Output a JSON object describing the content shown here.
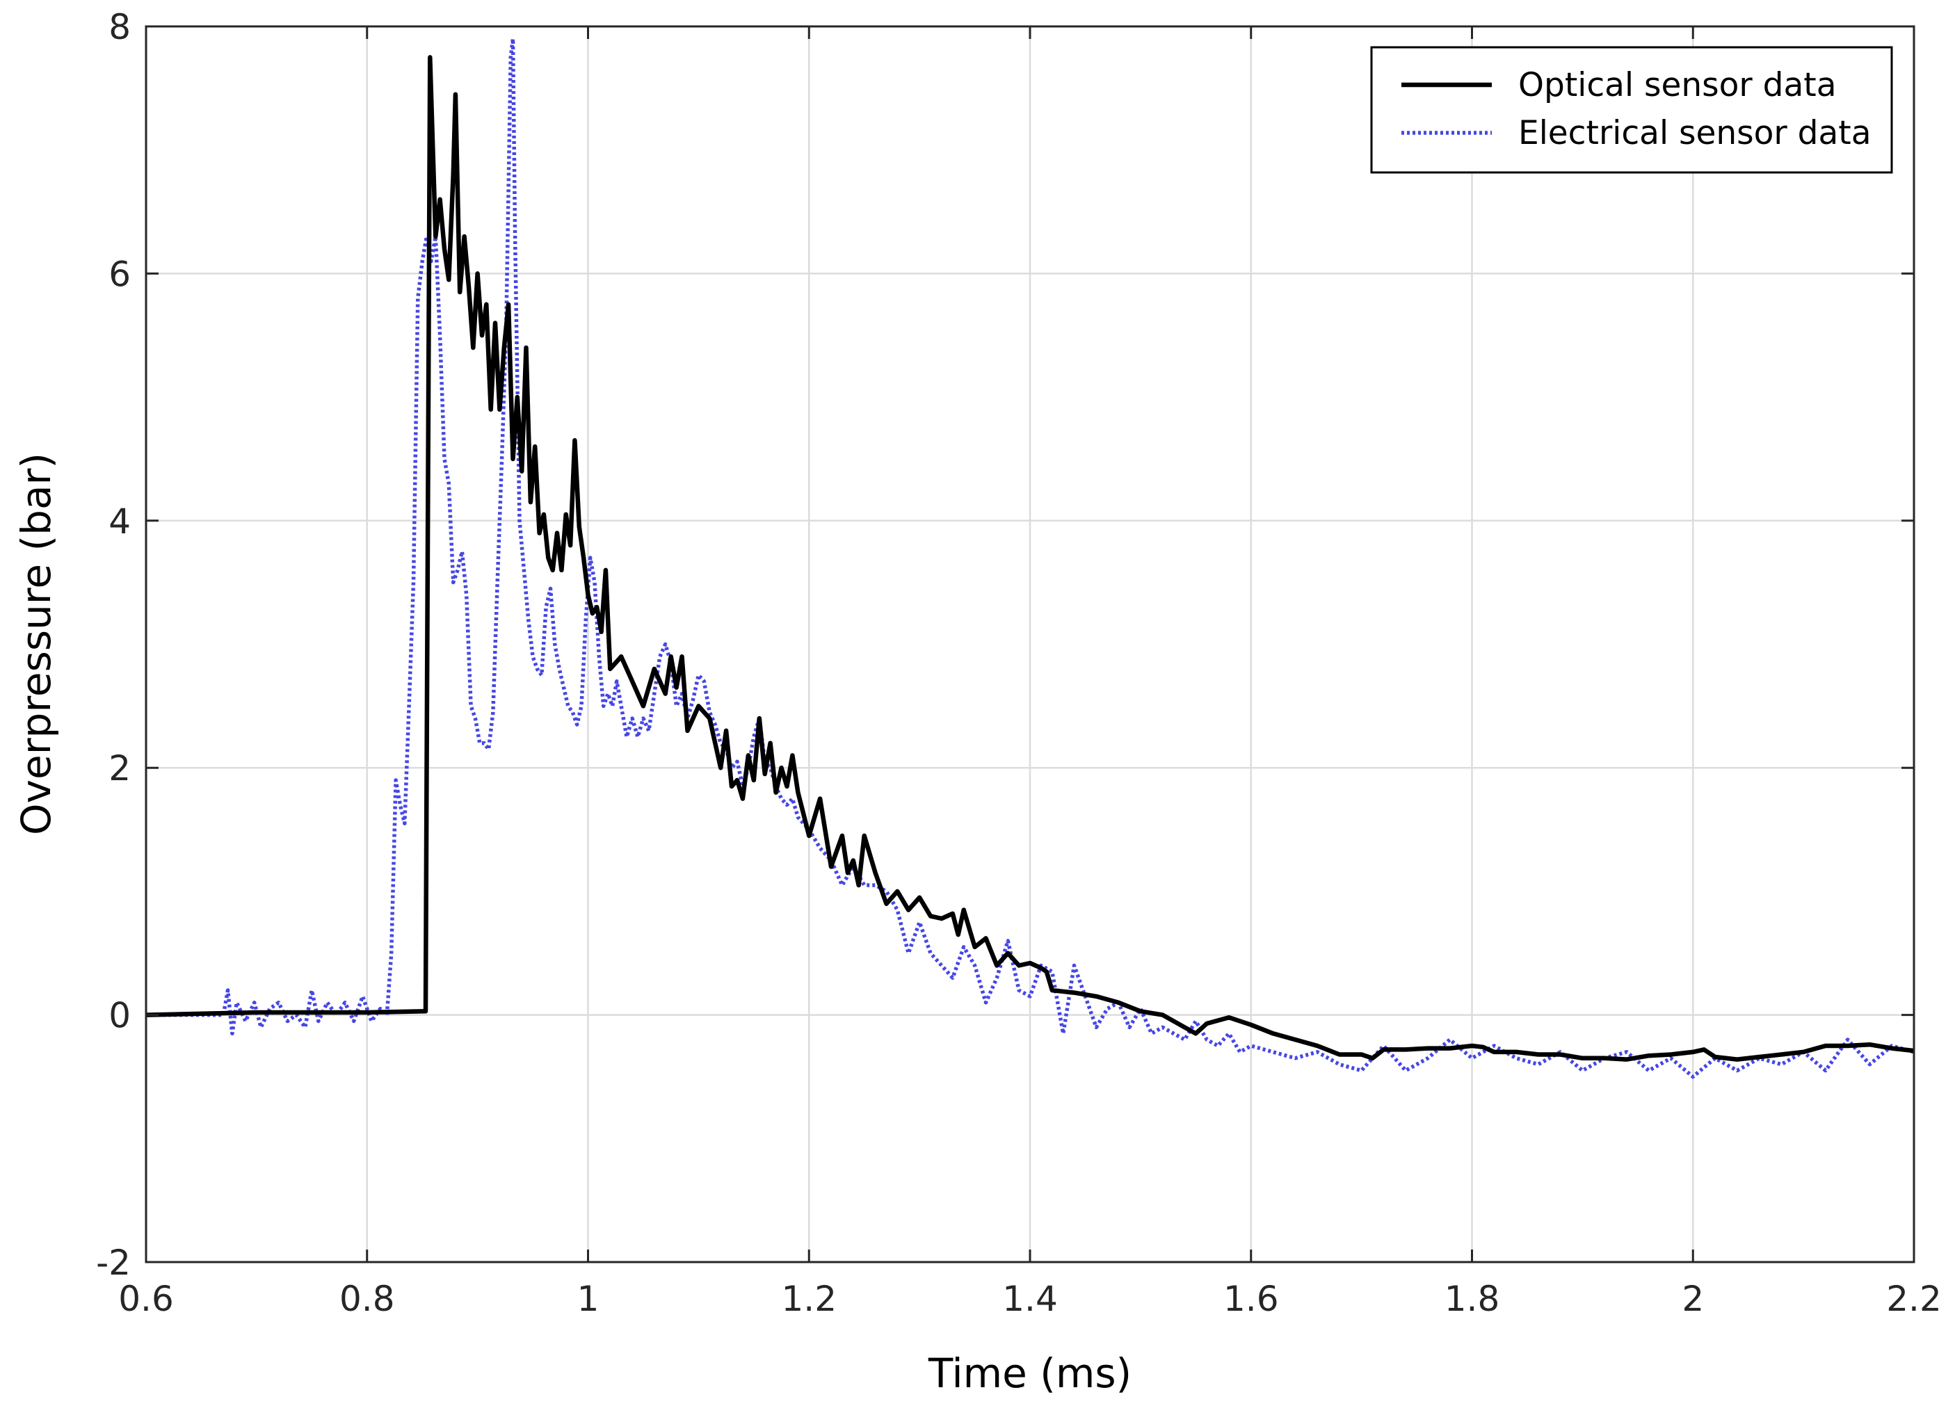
{
  "chart_data": {
    "type": "line",
    "xlabel": "Time (ms)",
    "ylabel": "Overpressure (bar)",
    "xlim": [
      0.6,
      2.2
    ],
    "ylim": [
      -2,
      8
    ],
    "xticks": [
      "0.6",
      "0.8",
      "1",
      "1.2",
      "1.4",
      "1.6",
      "1.8",
      "2",
      "2.2"
    ],
    "yticks": [
      "-2",
      "0",
      "2",
      "4",
      "6",
      "8"
    ],
    "grid": true,
    "legend_position": "top-right",
    "series": [
      {
        "name": "Optical sensor data",
        "color": "#000000",
        "style": "solid",
        "x": [
          0.6,
          0.7,
          0.8,
          0.853,
          0.854,
          0.857,
          0.862,
          0.866,
          0.87,
          0.874,
          0.878,
          0.88,
          0.884,
          0.888,
          0.892,
          0.896,
          0.9,
          0.904,
          0.908,
          0.912,
          0.916,
          0.92,
          0.924,
          0.928,
          0.932,
          0.936,
          0.94,
          0.944,
          0.948,
          0.952,
          0.956,
          0.96,
          0.964,
          0.968,
          0.972,
          0.976,
          0.98,
          0.984,
          0.988,
          0.992,
          0.996,
          1.0,
          1.004,
          1.008,
          1.012,
          1.016,
          1.02,
          1.03,
          1.04,
          1.05,
          1.06,
          1.07,
          1.075,
          1.08,
          1.085,
          1.09,
          1.1,
          1.11,
          1.12,
          1.125,
          1.13,
          1.135,
          1.14,
          1.145,
          1.15,
          1.155,
          1.16,
          1.165,
          1.17,
          1.175,
          1.18,
          1.185,
          1.19,
          1.2,
          1.21,
          1.22,
          1.23,
          1.235,
          1.24,
          1.245,
          1.25,
          1.26,
          1.27,
          1.28,
          1.29,
          1.3,
          1.31,
          1.32,
          1.33,
          1.335,
          1.34,
          1.35,
          1.36,
          1.37,
          1.38,
          1.39,
          1.4,
          1.41,
          1.415,
          1.42,
          1.44,
          1.46,
          1.48,
          1.5,
          1.52,
          1.54,
          1.55,
          1.56,
          1.58,
          1.6,
          1.62,
          1.64,
          1.66,
          1.68,
          1.7,
          1.71,
          1.72,
          1.74,
          1.76,
          1.78,
          1.8,
          1.81,
          1.82,
          1.84,
          1.86,
          1.88,
          1.9,
          1.92,
          1.94,
          1.96,
          1.98,
          2.0,
          2.01,
          2.02,
          2.04,
          2.06,
          2.08,
          2.1,
          2.12,
          2.14,
          2.16,
          2.18,
          2.2
        ],
        "y": [
          0.0,
          0.02,
          0.02,
          0.03,
          2.0,
          7.75,
          6.3,
          6.6,
          6.2,
          5.95,
          6.8,
          7.45,
          5.85,
          6.3,
          5.9,
          5.4,
          6.0,
          5.5,
          5.75,
          4.9,
          5.6,
          4.9,
          5.4,
          5.75,
          4.5,
          5.0,
          4.4,
          5.4,
          4.15,
          4.6,
          3.9,
          4.05,
          3.7,
          3.6,
          3.9,
          3.6,
          4.05,
          3.8,
          4.65,
          3.95,
          3.7,
          3.4,
          3.25,
          3.3,
          3.1,
          3.6,
          2.8,
          2.9,
          2.7,
          2.5,
          2.8,
          2.6,
          2.9,
          2.65,
          2.9,
          2.3,
          2.5,
          2.4,
          2.0,
          2.3,
          1.85,
          1.9,
          1.75,
          2.1,
          1.9,
          2.4,
          1.95,
          2.2,
          1.8,
          2.0,
          1.85,
          2.1,
          1.8,
          1.45,
          1.75,
          1.2,
          1.45,
          1.15,
          1.25,
          1.05,
          1.45,
          1.15,
          0.9,
          1.0,
          0.85,
          0.95,
          0.8,
          0.78,
          0.82,
          0.65,
          0.85,
          0.55,
          0.62,
          0.4,
          0.5,
          0.4,
          0.42,
          0.38,
          0.35,
          0.2,
          0.18,
          0.15,
          0.1,
          0.03,
          0.0,
          -0.1,
          -0.15,
          -0.07,
          -0.02,
          -0.08,
          -0.15,
          -0.2,
          -0.25,
          -0.32,
          -0.32,
          -0.35,
          -0.28,
          -0.28,
          -0.27,
          -0.27,
          -0.25,
          -0.26,
          -0.3,
          -0.3,
          -0.32,
          -0.32,
          -0.35,
          -0.35,
          -0.36,
          -0.33,
          -0.32,
          -0.3,
          -0.28,
          -0.34,
          -0.36,
          -0.34,
          -0.32,
          -0.3,
          -0.25,
          -0.25,
          -0.24,
          -0.27,
          -0.29
        ]
      },
      {
        "name": "Electrical sensor data",
        "color": "#4646e6",
        "style": "dotted",
        "x": [
          0.6,
          0.67,
          0.674,
          0.678,
          0.682,
          0.69,
          0.698,
          0.704,
          0.712,
          0.72,
          0.728,
          0.736,
          0.744,
          0.75,
          0.756,
          0.764,
          0.772,
          0.78,
          0.788,
          0.796,
          0.804,
          0.812,
          0.818,
          0.822,
          0.826,
          0.83,
          0.834,
          0.838,
          0.842,
          0.846,
          0.85,
          0.854,
          0.858,
          0.862,
          0.866,
          0.87,
          0.874,
          0.878,
          0.882,
          0.886,
          0.89,
          0.894,
          0.898,
          0.902,
          0.906,
          0.91,
          0.914,
          0.918,
          0.922,
          0.926,
          0.93,
          0.932,
          0.934,
          0.938,
          0.942,
          0.946,
          0.95,
          0.954,
          0.958,
          0.962,
          0.966,
          0.97,
          0.974,
          0.978,
          0.982,
          0.986,
          0.99,
          0.994,
          0.998,
          1.002,
          1.006,
          1.01,
          1.014,
          1.018,
          1.022,
          1.026,
          1.03,
          1.035,
          1.04,
          1.045,
          1.05,
          1.055,
          1.06,
          1.065,
          1.07,
          1.075,
          1.08,
          1.085,
          1.09,
          1.095,
          1.1,
          1.105,
          1.11,
          1.115,
          1.12,
          1.125,
          1.13,
          1.135,
          1.14,
          1.145,
          1.15,
          1.155,
          1.16,
          1.165,
          1.17,
          1.175,
          1.18,
          1.185,
          1.19,
          1.195,
          1.2,
          1.21,
          1.22,
          1.23,
          1.24,
          1.25,
          1.26,
          1.27,
          1.28,
          1.29,
          1.3,
          1.31,
          1.32,
          1.33,
          1.34,
          1.35,
          1.36,
          1.37,
          1.38,
          1.39,
          1.4,
          1.41,
          1.42,
          1.43,
          1.44,
          1.45,
          1.46,
          1.47,
          1.48,
          1.49,
          1.5,
          1.51,
          1.52,
          1.53,
          1.54,
          1.55,
          1.56,
          1.57,
          1.58,
          1.59,
          1.6,
          1.62,
          1.64,
          1.66,
          1.68,
          1.7,
          1.71,
          1.72,
          1.74,
          1.76,
          1.78,
          1.8,
          1.82,
          1.84,
          1.86,
          1.88,
          1.9,
          1.92,
          1.94,
          1.96,
          1.98,
          2.0,
          2.02,
          2.04,
          2.06,
          2.08,
          2.1,
          2.12,
          2.14,
          2.16,
          2.18,
          2.2
        ],
        "y": [
          0.0,
          0.0,
          0.2,
          -0.15,
          0.1,
          -0.05,
          0.1,
          -0.1,
          0.05,
          0.1,
          -0.05,
          0.0,
          -0.1,
          0.2,
          -0.05,
          0.1,
          0.0,
          0.1,
          -0.05,
          0.15,
          -0.05,
          0.05,
          0.0,
          0.5,
          1.9,
          1.7,
          1.55,
          2.5,
          3.5,
          5.8,
          6.1,
          6.3,
          6.1,
          6.3,
          5.5,
          4.5,
          4.3,
          3.5,
          3.6,
          3.75,
          3.4,
          2.5,
          2.4,
          2.2,
          2.2,
          2.15,
          2.45,
          3.5,
          4.5,
          5.6,
          7.75,
          7.9,
          6.3,
          4.0,
          3.6,
          3.2,
          2.9,
          2.8,
          2.75,
          3.3,
          3.45,
          3.0,
          2.8,
          2.65,
          2.5,
          2.45,
          2.35,
          2.5,
          3.2,
          3.7,
          3.5,
          2.9,
          2.5,
          2.6,
          2.5,
          2.7,
          2.5,
          2.25,
          2.4,
          2.25,
          2.4,
          2.3,
          2.6,
          2.9,
          3.0,
          2.85,
          2.5,
          2.6,
          2.4,
          2.55,
          2.75,
          2.7,
          2.45,
          2.35,
          2.2,
          2.15,
          2.0,
          2.05,
          1.85,
          2.0,
          2.25,
          2.4,
          2.05,
          2.0,
          1.85,
          1.75,
          1.7,
          1.75,
          1.6,
          1.55,
          1.5,
          1.35,
          1.25,
          1.05,
          1.2,
          1.05,
          1.05,
          1.0,
          0.85,
          0.5,
          0.75,
          0.5,
          0.4,
          0.3,
          0.55,
          0.4,
          0.1,
          0.3,
          0.6,
          0.2,
          0.15,
          0.4,
          0.35,
          -0.15,
          0.4,
          0.15,
          -0.1,
          0.05,
          0.1,
          -0.1,
          0.05,
          -0.15,
          -0.1,
          -0.15,
          -0.2,
          -0.05,
          -0.2,
          -0.25,
          -0.15,
          -0.3,
          -0.25,
          -0.3,
          -0.35,
          -0.3,
          -0.4,
          -0.45,
          -0.35,
          -0.25,
          -0.45,
          -0.35,
          -0.2,
          -0.35,
          -0.25,
          -0.35,
          -0.4,
          -0.3,
          -0.45,
          -0.35,
          -0.3,
          -0.45,
          -0.35,
          -0.5,
          -0.35,
          -0.45,
          -0.35,
          -0.4,
          -0.3,
          -0.45,
          -0.2,
          -0.4,
          -0.25,
          -0.3
        ]
      }
    ]
  }
}
